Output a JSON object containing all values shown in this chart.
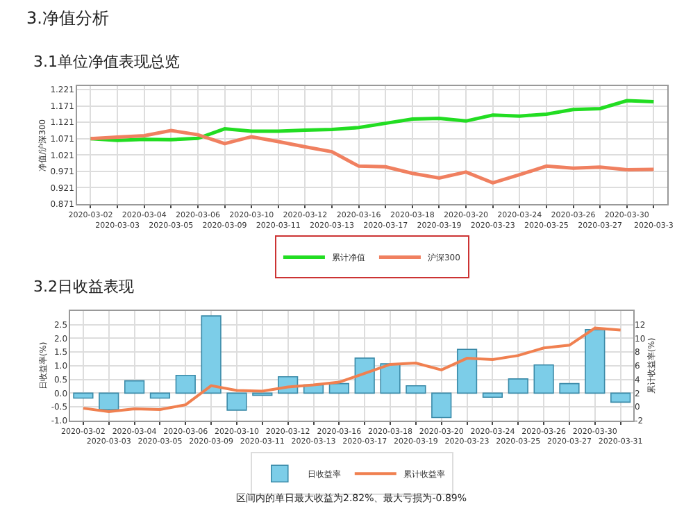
{
  "chart_data": [
    {
      "type": "line",
      "title": "3.1单位净值表现总览",
      "ylabel": "净值/沪深300",
      "annotations": [
        "3.净值分析"
      ],
      "categories": [
        "2020-03-02",
        "2020-03-03",
        "2020-03-04",
        "2020-03-05",
        "2020-03-06",
        "2020-03-09",
        "2020-03-10",
        "2020-03-11",
        "2020-03-12",
        "2020-03-13",
        "2020-03-16",
        "2020-03-17",
        "2020-03-18",
        "2020-03-19",
        "2020-03-20",
        "2020-03-23",
        "2020-03-24",
        "2020-03-25",
        "2020-03-26",
        "2020-03-27",
        "2020-03-30",
        "2020-03-3"
      ],
      "series": [
        {
          "name": "累计净值",
          "color": "#22dd22",
          "values": [
            1.071,
            1.066,
            1.069,
            1.068,
            1.072,
            1.101,
            1.094,
            1.094,
            1.097,
            1.099,
            1.105,
            1.118,
            1.131,
            1.133,
            1.125,
            1.143,
            1.14,
            1.146,
            1.16,
            1.163,
            1.187,
            1.184
          ]
        },
        {
          "name": "沪深300",
          "color": "#f08060",
          "values": [
            1.071,
            1.076,
            1.08,
            1.096,
            1.083,
            1.056,
            1.077,
            1.062,
            1.046,
            1.031,
            0.987,
            0.985,
            0.965,
            0.951,
            0.969,
            0.936,
            0.961,
            0.987,
            0.981,
            0.984,
            0.976,
            0.977
          ]
        }
      ],
      "ylim": [
        0.871,
        1.231
      ],
      "yticks": [
        0.871,
        0.921,
        0.971,
        1.021,
        1.071,
        1.121,
        1.171,
        1.221
      ],
      "grid": true,
      "legend": "bottom",
      "marker": "none",
      "line_style": "solid"
    },
    {
      "type": "bar",
      "title": "3.2日收益表现",
      "ylabel": "日收益率(%)",
      "y2label": "累计收益率(%)",
      "annotations": [
        "区间内的单日最大收益为2.82%、最大亏损为-0.89%"
      ],
      "categories": [
        "2020-03-02",
        "2020-03-03",
        "2020-03-04",
        "2020-03-05",
        "2020-03-06",
        "2020-03-09",
        "2020-03-10",
        "2020-03-11",
        "2020-03-12",
        "2020-03-13",
        "2020-03-16",
        "2020-03-17",
        "2020-03-18",
        "2020-03-19",
        "2020-03-20",
        "2020-03-23",
        "2020-03-24",
        "2020-03-25",
        "2020-03-26",
        "2020-03-27",
        "2020-03-30",
        "2020-03-31"
      ],
      "series": [
        {
          "name": "日收益率",
          "type": "bar",
          "color": "#7ccde8",
          "values": [
            -0.18,
            -0.6,
            0.45,
            -0.18,
            0.65,
            2.82,
            -0.62,
            -0.08,
            0.6,
            0.3,
            0.35,
            1.28,
            1.07,
            0.27,
            -0.89,
            1.6,
            -0.15,
            0.52,
            1.03,
            0.35,
            2.32,
            -0.33
          ]
        },
        {
          "name": "累计收益率",
          "type": "line",
          "axis": "y2",
          "color": "#f08050",
          "values": [
            -0.2,
            -0.7,
            -0.3,
            -0.4,
            0.3,
            3.1,
            2.4,
            2.3,
            2.9,
            3.2,
            3.6,
            4.9,
            6.2,
            6.4,
            5.4,
            7.1,
            6.9,
            7.5,
            8.6,
            9.0,
            11.5,
            11.2
          ]
        }
      ],
      "ylim": [
        -1,
        3
      ],
      "yticks": [
        {
          "value": -1,
          "label": "-1.0"
        },
        -0.5,
        {
          "value": 0,
          "label": "0.0"
        },
        0.5,
        {
          "value": 1,
          "label": "1.0"
        },
        1.5,
        {
          "value": 2,
          "label": "2.0"
        },
        2.5
      ],
      "y2lim": [
        -2,
        14
      ],
      "y2ticks": [
        -2,
        0,
        2,
        4,
        6,
        8,
        10,
        12
      ],
      "grid": true,
      "legend": "bottom",
      "marker": "none",
      "line_style": "solid"
    }
  ]
}
